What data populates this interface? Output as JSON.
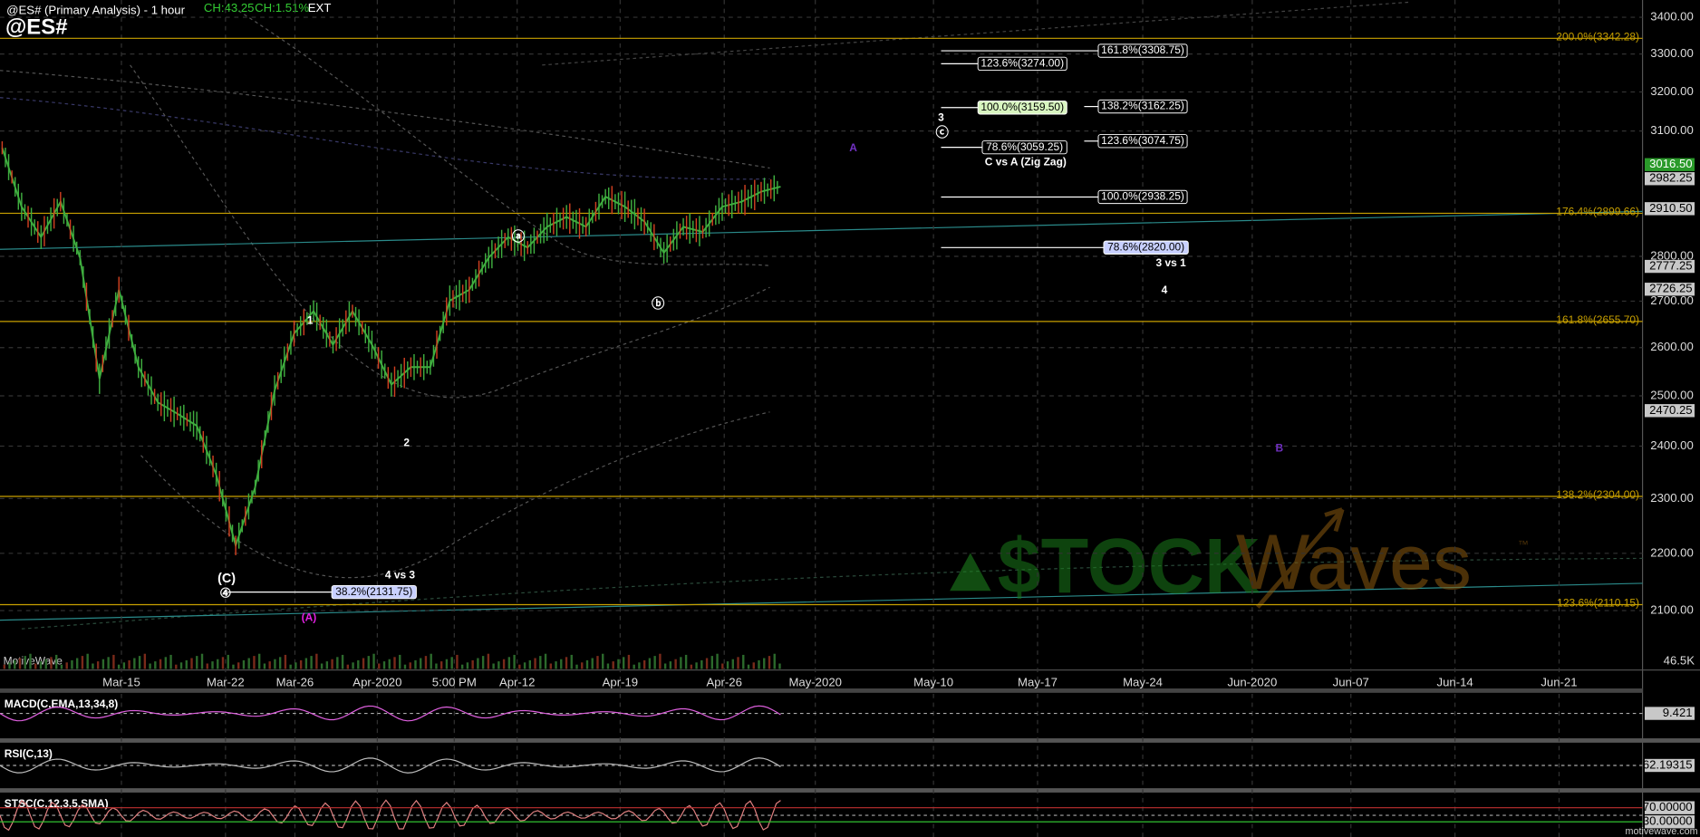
{
  "header": {
    "title": "@ES# (Primary Analysis) - 1 hour",
    "change": "CH:43.25",
    "change_pct": "CH:1.51%",
    "session": "EXT",
    "symbol": "@ES#"
  },
  "chart_data": {
    "type": "line",
    "log_scale": true,
    "grid": true,
    "color": "#3fae3f",
    "ylim": [
      2001,
      3448
    ],
    "yticks": [
      {
        "value": 2100,
        "label": "2100.00"
      },
      {
        "value": 2200,
        "label": "2200.00"
      },
      {
        "value": 2300,
        "label": "2300.00"
      },
      {
        "value": 2400,
        "label": "2400.00"
      },
      {
        "value": 2500,
        "label": "2500.00"
      },
      {
        "value": 2600,
        "label": "2600.00"
      },
      {
        "value": 2700,
        "label": "2700.00"
      },
      {
        "value": 2800,
        "label": "2800.00"
      },
      {
        "value": 3100,
        "label": "3100.00"
      },
      {
        "value": 3200,
        "label": "3200.00"
      },
      {
        "value": 3300,
        "label": "3300.00"
      },
      {
        "value": 3400,
        "label": "3400.00"
      }
    ],
    "xlabels": [
      "Mar-15",
      "Mar-22",
      "Mar-26",
      "Apr-2020",
      "5:00 PM",
      "Apr-12",
      "Apr-19",
      "Apr-26",
      "May-2020",
      "May-10",
      "May-17",
      "May-24",
      "Jun-2020",
      "Jun-07",
      "Jun-14",
      "Jun-21"
    ],
    "values": [
      3058,
      2915,
      2844,
      2927,
      2797,
      2535,
      2725,
      2559,
      2487,
      2464,
      2440,
      2345,
      2214,
      2321,
      2511,
      2630,
      2678,
      2606,
      2678,
      2606,
      2523,
      2559,
      2559,
      2701,
      2725,
      2797,
      2844,
      2820,
      2868,
      2891,
      2868,
      2939,
      2915,
      2880,
      2808,
      2868,
      2856,
      2915,
      2927,
      2951,
      2963
    ],
    "price_markers": [
      {
        "value": 3016.5,
        "label": "3016.50"
      },
      {
        "value": 2982.25,
        "label": "2982.25"
      },
      {
        "value": 2910.5,
        "label": "2910.50"
      },
      {
        "value": 2777.25,
        "label": "2777.25"
      },
      {
        "value": 2726.25,
        "label": "2726.25"
      },
      {
        "value": 2470.25,
        "label": "2470.25"
      }
    ],
    "fib_color": "#c8a000",
    "fib_levels": [
      {
        "value": 3342.28,
        "label": "200.0%(3342.28)"
      },
      {
        "value": 2899.66,
        "label": "176.4%(2899.66)"
      },
      {
        "value": 2655.7,
        "label": "161.8%(2655.70)"
      },
      {
        "value": 2304,
        "label": "138.2%(2304.00)"
      },
      {
        "value": 2110.15,
        "label": "123.6%(2110.15)"
      }
    ],
    "targets": [
      {
        "value": 3308.75,
        "label": "161.8%(3308.75)"
      },
      {
        "value": 3274,
        "label": "123.6%(3274.00)"
      },
      {
        "value": 3159.5,
        "label": "100.0%(3159.50)"
      },
      {
        "value": 3162.25,
        "label": "138.2%(3162.25)"
      },
      {
        "value": 3074.75,
        "label": "123.6%(3074.75)"
      },
      {
        "value": 3059.25,
        "label": "78.6%(3059.25)"
      },
      {
        "value": 2938.25,
        "label": "100.0%(2938.25)"
      },
      {
        "value": 2820,
        "label": "78.6%(2820.00)"
      },
      {
        "value": 2131.75,
        "label": "38.2%(2131.75)"
      }
    ],
    "annotations": [
      "C vs A (Zig Zag)",
      "3 vs 1",
      "4",
      "4 vs 3"
    ],
    "wave_labels": [
      "1",
      "2",
      "ⓐ",
      "ⓑ",
      "(C)",
      "④",
      "(A)",
      "3",
      "ⓒ",
      "A",
      "B"
    ],
    "volume_label": "46.5K"
  },
  "indicators": [
    {
      "name": "MACD(C,EMA,13,34,8)",
      "value": 9.421
    },
    {
      "name": "RSI(C,13)",
      "value": 62.19315
    },
    {
      "name": "STSC(C,12,3,5,SMA)",
      "levels": [
        {
          "value": 70,
          "label": "70.00000"
        },
        {
          "value": 30,
          "label": "30.00000"
        }
      ]
    }
  ],
  "footer": {
    "brand": "MotiveWave",
    "url": "motivewave.com"
  },
  "logo": {
    "left": "$TOCK",
    "right": "Waves",
    "tm": "™"
  }
}
